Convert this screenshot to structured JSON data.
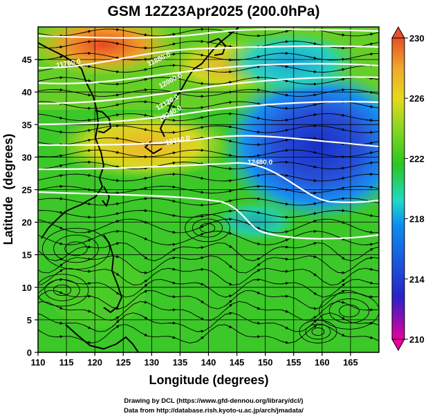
{
  "title": "GSM 12Z23Apr2025 (200.0hPa)",
  "map": {
    "xlabel": "Longitude (degrees)",
    "ylabel": "Latitude  (degrees)",
    "x_range": [
      110,
      170
    ],
    "y_range": [
      0,
      50
    ],
    "x_ticks": [
      "110",
      "115",
      "120",
      "125",
      "130",
      "135",
      "140",
      "145",
      "150",
      "155",
      "160",
      "165"
    ],
    "y_ticks": [
      "0",
      "5",
      "10",
      "15",
      "20",
      "25",
      "30",
      "35",
      "40",
      "45"
    ],
    "graticule": "lines every 5 degrees",
    "field": "temperature (K) shaded, wind streamlines and arrows, white geopotential height contours",
    "contour_labels": [
      "11760.0",
      "11880.0",
      "12000.0",
      "12120.0",
      "12240.0",
      "12360.0",
      "12480.0"
    ]
  },
  "colorbar": {
    "ticks": [
      "230",
      "226",
      "222",
      "218",
      "214",
      "210"
    ],
    "range": [
      210,
      230
    ],
    "colors": [
      "#e8009a",
      "#2a22c8",
      "#0a8ff0",
      "#22d8c8",
      "#28c820",
      "#8ad622",
      "#e6d81e",
      "#f0a82a",
      "#e85028"
    ]
  },
  "credits": {
    "line1": "Drawing by DCL (https://www.gfd-dennou.org/library/dcl/)",
    "line2": "Data from http://database.rish.kyoto-u.ac.jp/arch/jmadata/"
  }
}
